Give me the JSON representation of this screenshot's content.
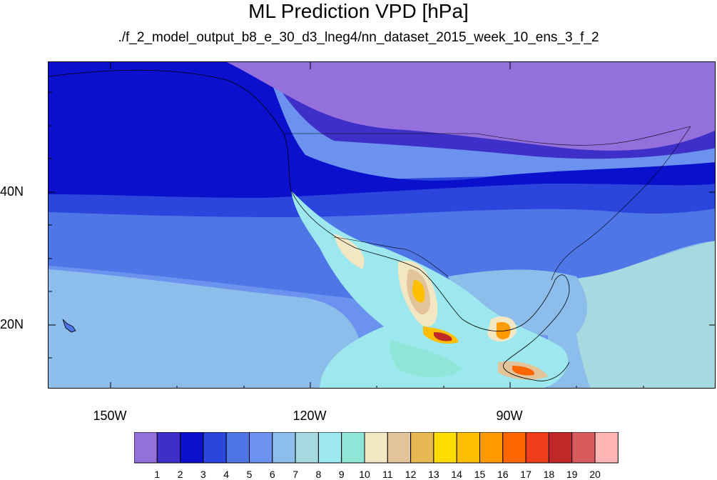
{
  "title": "ML Prediction VPD [hPa]",
  "subtitle": "./f_2_model_output_b8_e_30_d3_lneg4/nn_dataset_2015_week_10_ens_3_f_2",
  "lat_labels": [
    "40N",
    "20N"
  ],
  "lon_labels": [
    "150W",
    "120W",
    "90W"
  ],
  "colorbar": {
    "labels": [
      "1",
      "2",
      "3",
      "4",
      "5",
      "6",
      "7",
      "8",
      "9",
      "10",
      "11",
      "12",
      "13",
      "14",
      "15",
      "16",
      "17",
      "18",
      "19",
      "20"
    ],
    "colors": [
      "#9370db",
      "#3f2fc9",
      "#0a10cc",
      "#2c45dd",
      "#4f76e6",
      "#6a92ee",
      "#8dbdea",
      "#a6dae0",
      "#9ce8ee",
      "#8fe6d6",
      "#f3e7c3",
      "#e3c49a",
      "#e5b852",
      "#ffdd00",
      "#ffbf00",
      "#ff9a00",
      "#ff6600",
      "#ee3f1a",
      "#c02828",
      "#d95c5c",
      "#ffb6b6"
    ]
  }
}
